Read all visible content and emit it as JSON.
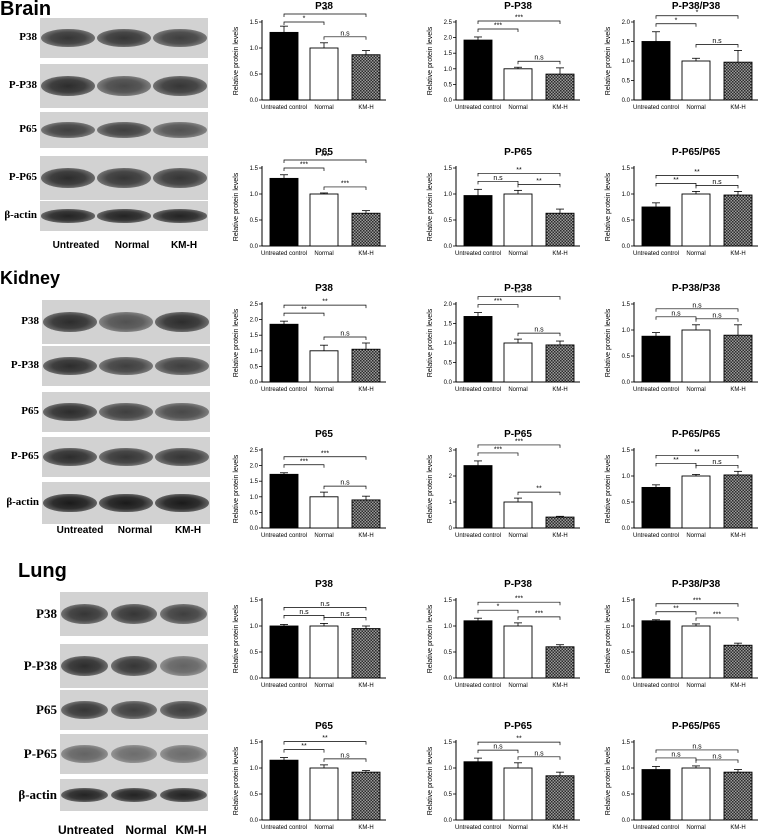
{
  "sections": [
    {
      "title": "Brain",
      "blot": {
        "rows": [
          {
            "label": "P38",
            "intensity": [
              0.85,
              0.85,
              0.8
            ]
          },
          {
            "label": "P-P38",
            "intensity": [
              0.9,
              0.75,
              0.85
            ]
          },
          {
            "label": "P65",
            "intensity": [
              0.8,
              0.8,
              0.7
            ]
          },
          {
            "label": "P-P65",
            "intensity": [
              0.9,
              0.85,
              0.85
            ]
          },
          {
            "label": "β-actin",
            "intensity": [
              0.95,
              0.95,
              0.95
            ]
          }
        ],
        "lanes": [
          "Untreated",
          "Normal",
          "KM-H"
        ]
      }
    },
    {
      "title": "Kidney",
      "blot": {
        "rows": [
          {
            "label": "P38",
            "intensity": [
              0.9,
              0.7,
              0.9
            ]
          },
          {
            "label": "P-P38",
            "intensity": [
              0.9,
              0.8,
              0.8
            ]
          },
          {
            "label": "P65",
            "intensity": [
              0.9,
              0.8,
              0.75
            ]
          },
          {
            "label": "P-P65",
            "intensity": [
              0.9,
              0.85,
              0.85
            ]
          },
          {
            "label": "β-actin",
            "intensity": [
              1.0,
              1.0,
              1.0
            ]
          }
        ],
        "lanes": [
          "Untreated",
          "Normal",
          "KM-H"
        ]
      }
    },
    {
      "title": "Lung",
      "blot": {
        "rows": [
          {
            "label": "P38",
            "intensity": [
              0.85,
              0.85,
              0.8
            ]
          },
          {
            "label": "P-P38",
            "intensity": [
              0.9,
              0.85,
              0.6
            ]
          },
          {
            "label": "P65",
            "intensity": [
              0.85,
              0.8,
              0.8
            ]
          },
          {
            "label": "P-P65",
            "intensity": [
              0.6,
              0.55,
              0.55
            ]
          },
          {
            "label": "β-actin",
            "intensity": [
              0.95,
              0.95,
              0.95
            ]
          }
        ],
        "lanes": [
          "Untreated",
          "Normal",
          "KM-H"
        ]
      }
    }
  ],
  "colors": {
    "untreated_bar": "#000000",
    "normal_bar": "#ffffff",
    "kmh_bar": "#6e6e6e",
    "blot_background": "#d2d2d2"
  },
  "chart_data": [
    {
      "type": "bar",
      "section": "Brain",
      "title": "P38",
      "categories": [
        "Untreated control",
        "Normal",
        "KM-H"
      ],
      "values": [
        1.3,
        1.0,
        0.87
      ],
      "errors": [
        0.12,
        0.1,
        0.08
      ],
      "ylabel": "Relative protein levels",
      "ylim": [
        0,
        1.5
      ],
      "yticks": [
        "0.0",
        "0.5",
        "1.0",
        "1.5"
      ],
      "significance": [
        {
          "from": 0,
          "to": 1,
          "label": "*"
        },
        {
          "from": 0,
          "to": 2,
          "label": "**"
        },
        {
          "from": 1,
          "to": 2,
          "label": "n.s"
        }
      ]
    },
    {
      "type": "bar",
      "section": "Brain",
      "title": "P-P38",
      "categories": [
        "Untreated control",
        "Normal",
        "KM-H"
      ],
      "values": [
        1.92,
        1.0,
        0.83
      ],
      "errors": [
        0.1,
        0.05,
        0.2
      ],
      "ylabel": "Relative protein levels",
      "ylim": [
        0,
        2.5
      ],
      "yticks": [
        "0.0",
        "0.5",
        "1.0",
        "1.5",
        "2.0",
        "2.5"
      ],
      "significance": [
        {
          "from": 0,
          "to": 1,
          "label": "***"
        },
        {
          "from": 0,
          "to": 2,
          "label": "***"
        },
        {
          "from": 1,
          "to": 2,
          "label": "n.s"
        }
      ]
    },
    {
      "type": "bar",
      "section": "Brain",
      "title": "P-P38/P38",
      "categories": [
        "Untreated control",
        "Normal",
        "KM-H"
      ],
      "values": [
        1.5,
        1.0,
        0.97
      ],
      "errors": [
        0.25,
        0.07,
        0.3
      ],
      "ylabel": "Relative protein levels",
      "ylim": [
        0,
        2.0
      ],
      "yticks": [
        "0.0",
        "0.5",
        "1.0",
        "1.5",
        "2.0"
      ],
      "significance": [
        {
          "from": 0,
          "to": 1,
          "label": "*"
        },
        {
          "from": 0,
          "to": 2,
          "label": "*"
        },
        {
          "from": 1,
          "to": 2,
          "label": "n.s"
        }
      ]
    },
    {
      "type": "bar",
      "section": "Brain",
      "title": "P65",
      "categories": [
        "Untreated control",
        "Normal",
        "KM-H"
      ],
      "values": [
        1.3,
        1.0,
        0.63
      ],
      "errors": [
        0.07,
        0.02,
        0.05
      ],
      "ylabel": "Relative protein levels",
      "ylim": [
        0,
        1.5
      ],
      "yticks": [
        "0.0",
        "0.5",
        "1.0",
        "1.5"
      ],
      "significance": [
        {
          "from": 0,
          "to": 1,
          "label": "***"
        },
        {
          "from": 0,
          "to": 2,
          "label": "***"
        },
        {
          "from": 1,
          "to": 2,
          "label": "***"
        }
      ]
    },
    {
      "type": "bar",
      "section": "Brain",
      "title": "P-P65",
      "categories": [
        "Untreated control",
        "Normal",
        "KM-H"
      ],
      "values": [
        0.97,
        1.0,
        0.63
      ],
      "errors": [
        0.12,
        0.07,
        0.08
      ],
      "ylabel": "Relative protein levels",
      "ylim": [
        0,
        1.5
      ],
      "yticks": [
        "0.0",
        "0.5",
        "1.0",
        "1.5"
      ],
      "significance": [
        {
          "from": 0,
          "to": 1,
          "label": "n.s"
        },
        {
          "from": 0,
          "to": 2,
          "label": "**"
        },
        {
          "from": 1,
          "to": 2,
          "label": "**"
        }
      ]
    },
    {
      "type": "bar",
      "section": "Brain",
      "title": "P-P65/P65",
      "categories": [
        "Untreated control",
        "Normal",
        "KM-H"
      ],
      "values": [
        0.75,
        1.0,
        0.98
      ],
      "errors": [
        0.08,
        0.05,
        0.07
      ],
      "ylabel": "Relative protein levels",
      "ylim": [
        0,
        1.5
      ],
      "yticks": [
        "0.0",
        "0.5",
        "1.0",
        "1.5"
      ],
      "significance": [
        {
          "from": 0,
          "to": 1,
          "label": "**"
        },
        {
          "from": 0,
          "to": 2,
          "label": "**"
        },
        {
          "from": 1,
          "to": 2,
          "label": "n.s"
        }
      ]
    },
    {
      "type": "bar",
      "section": "Kidney",
      "title": "P38",
      "categories": [
        "Untreated control",
        "Normal",
        "KM-H"
      ],
      "values": [
        1.85,
        1.0,
        1.05
      ],
      "errors": [
        0.1,
        0.18,
        0.2
      ],
      "ylabel": "Relative protein levels",
      "ylim": [
        0,
        2.5
      ],
      "yticks": [
        "0.0",
        "0.5",
        "1.0",
        "1.5",
        "2.0",
        "2.5"
      ],
      "significance": [
        {
          "from": 0,
          "to": 1,
          "label": "**"
        },
        {
          "from": 0,
          "to": 2,
          "label": "**"
        },
        {
          "from": 1,
          "to": 2,
          "label": "n.s"
        }
      ]
    },
    {
      "type": "bar",
      "section": "Kidney",
      "title": "P-P38",
      "categories": [
        "Untreated control",
        "Normal",
        "KM-H"
      ],
      "values": [
        1.68,
        1.0,
        0.95
      ],
      "errors": [
        0.1,
        0.1,
        0.1
      ],
      "ylabel": "Relative protein levels",
      "ylim": [
        0,
        2.0
      ],
      "yticks": [
        "0.0",
        "0.5",
        "1.0",
        "1.5",
        "2.0"
      ],
      "significance": [
        {
          "from": 0,
          "to": 1,
          "label": "***"
        },
        {
          "from": 0,
          "to": 2,
          "label": "***"
        },
        {
          "from": 1,
          "to": 2,
          "label": "n.s"
        }
      ]
    },
    {
      "type": "bar",
      "section": "Kidney",
      "title": "P-P38/P38",
      "categories": [
        "Untreated control",
        "Normal",
        "KM-H"
      ],
      "values": [
        0.88,
        1.0,
        0.9
      ],
      "errors": [
        0.07,
        0.1,
        0.2
      ],
      "ylabel": "Relative protein levels",
      "ylim": [
        0,
        1.5
      ],
      "yticks": [
        "0.0",
        "0.5",
        "1.0",
        "1.5"
      ],
      "significance": [
        {
          "from": 0,
          "to": 1,
          "label": "n.s"
        },
        {
          "from": 0,
          "to": 2,
          "label": "n.s"
        },
        {
          "from": 1,
          "to": 2,
          "label": "n.s"
        }
      ]
    },
    {
      "type": "bar",
      "section": "Kidney",
      "title": "P65",
      "categories": [
        "Untreated control",
        "Normal",
        "KM-H"
      ],
      "values": [
        1.72,
        1.0,
        0.9
      ],
      "errors": [
        0.05,
        0.15,
        0.12
      ],
      "ylabel": "Relative protein levels",
      "ylim": [
        0,
        2.5
      ],
      "yticks": [
        "0.0",
        "0.5",
        "1.0",
        "1.5",
        "2.0",
        "2.5"
      ],
      "significance": [
        {
          "from": 0,
          "to": 1,
          "label": "***"
        },
        {
          "from": 0,
          "to": 2,
          "label": "***"
        },
        {
          "from": 1,
          "to": 2,
          "label": "n.s"
        }
      ]
    },
    {
      "type": "bar",
      "section": "Kidney",
      "title": "P-P65",
      "categories": [
        "Untreated control",
        "Normal",
        "KM-H"
      ],
      "values": [
        2.4,
        1.0,
        0.42
      ],
      "errors": [
        0.18,
        0.15,
        0.03
      ],
      "ylabel": "Relative protein levels",
      "ylim": [
        0,
        3
      ],
      "yticks": [
        "0",
        "1",
        "2",
        "3"
      ],
      "significance": [
        {
          "from": 0,
          "to": 1,
          "label": "***"
        },
        {
          "from": 0,
          "to": 2,
          "label": "***"
        },
        {
          "from": 1,
          "to": 2,
          "label": "**"
        }
      ]
    },
    {
      "type": "bar",
      "section": "Kidney",
      "title": "P-P65/P65",
      "categories": [
        "Untreated control",
        "Normal",
        "KM-H"
      ],
      "values": [
        0.78,
        1.0,
        1.02
      ],
      "errors": [
        0.05,
        0.03,
        0.07
      ],
      "ylabel": "Relative protein levels",
      "ylim": [
        0,
        1.5
      ],
      "yticks": [
        "0.0",
        "0.5",
        "1.0",
        "1.5"
      ],
      "significance": [
        {
          "from": 0,
          "to": 1,
          "label": "**"
        },
        {
          "from": 0,
          "to": 2,
          "label": "**"
        },
        {
          "from": 1,
          "to": 2,
          "label": "n.s"
        }
      ]
    },
    {
      "type": "bar",
      "section": "Lung",
      "title": "P38",
      "categories": [
        "Untreated control",
        "Normal",
        "KM-H"
      ],
      "values": [
        1.0,
        1.0,
        0.95
      ],
      "errors": [
        0.03,
        0.05,
        0.05
      ],
      "ylabel": "Relative protein levels",
      "ylim": [
        0,
        1.5
      ],
      "yticks": [
        "0.0",
        "0.5",
        "1.0",
        "1.5"
      ],
      "significance": [
        {
          "from": 0,
          "to": 1,
          "label": "n.s"
        },
        {
          "from": 0,
          "to": 2,
          "label": "n.s"
        },
        {
          "from": 1,
          "to": 2,
          "label": "n.s"
        }
      ]
    },
    {
      "type": "bar",
      "section": "Lung",
      "title": "P-P38",
      "categories": [
        "Untreated control",
        "Normal",
        "KM-H"
      ],
      "values": [
        1.1,
        1.0,
        0.6
      ],
      "errors": [
        0.05,
        0.06,
        0.04
      ],
      "ylabel": "Relative protein levels",
      "ylim": [
        0,
        1.5
      ],
      "yticks": [
        "0.0",
        "0.5",
        "1.0",
        "1.5"
      ],
      "significance": [
        {
          "from": 0,
          "to": 1,
          "label": "*"
        },
        {
          "from": 0,
          "to": 2,
          "label": "***"
        },
        {
          "from": 1,
          "to": 2,
          "label": "***"
        }
      ]
    },
    {
      "type": "bar",
      "section": "Lung",
      "title": "P-P38/P38",
      "categories": [
        "Untreated control",
        "Normal",
        "KM-H"
      ],
      "values": [
        1.1,
        1.0,
        0.63
      ],
      "errors": [
        0.02,
        0.04,
        0.04
      ],
      "ylabel": "Relative protein levels",
      "ylim": [
        0,
        1.5
      ],
      "yticks": [
        "0.0",
        "0.5",
        "1.0",
        "1.5"
      ],
      "significance": [
        {
          "from": 0,
          "to": 1,
          "label": "**"
        },
        {
          "from": 0,
          "to": 2,
          "label": "***"
        },
        {
          "from": 1,
          "to": 2,
          "label": "***"
        }
      ]
    },
    {
      "type": "bar",
      "section": "Lung",
      "title": "P65",
      "categories": [
        "Untreated control",
        "Normal",
        "KM-H"
      ],
      "values": [
        1.15,
        1.0,
        0.92
      ],
      "errors": [
        0.05,
        0.06,
        0.03
      ],
      "ylabel": "Relative protein levels",
      "ylim": [
        0,
        1.5
      ],
      "yticks": [
        "0.0",
        "0.5",
        "1.0",
        "1.5"
      ],
      "significance": [
        {
          "from": 0,
          "to": 1,
          "label": "**"
        },
        {
          "from": 0,
          "to": 2,
          "label": "**"
        },
        {
          "from": 1,
          "to": 2,
          "label": "n.s"
        }
      ]
    },
    {
      "type": "bar",
      "section": "Lung",
      "title": "P-P65",
      "categories": [
        "Untreated control",
        "Normal",
        "KM-H"
      ],
      "values": [
        1.12,
        1.0,
        0.85
      ],
      "errors": [
        0.07,
        0.1,
        0.07
      ],
      "ylabel": "Relative protein levels",
      "ylim": [
        0,
        1.5
      ],
      "yticks": [
        "0.0",
        "0.5",
        "1.0",
        "1.5"
      ],
      "significance": [
        {
          "from": 0,
          "to": 1,
          "label": "n.s"
        },
        {
          "from": 0,
          "to": 2,
          "label": "**"
        },
        {
          "from": 1,
          "to": 2,
          "label": "n.s"
        }
      ]
    },
    {
      "type": "bar",
      "section": "Lung",
      "title": "P-P65/P65",
      "categories": [
        "Untreated control",
        "Normal",
        "KM-H"
      ],
      "values": [
        0.97,
        1.0,
        0.92
      ],
      "errors": [
        0.06,
        0.04,
        0.05
      ],
      "ylabel": "Relative protein levels",
      "ylim": [
        0,
        1.5
      ],
      "yticks": [
        "0.0",
        "0.5",
        "1.0",
        "1.5"
      ],
      "significance": [
        {
          "from": 0,
          "to": 1,
          "label": "n.s"
        },
        {
          "from": 0,
          "to": 2,
          "label": "n.s"
        },
        {
          "from": 1,
          "to": 2,
          "label": "n.s"
        }
      ]
    }
  ]
}
